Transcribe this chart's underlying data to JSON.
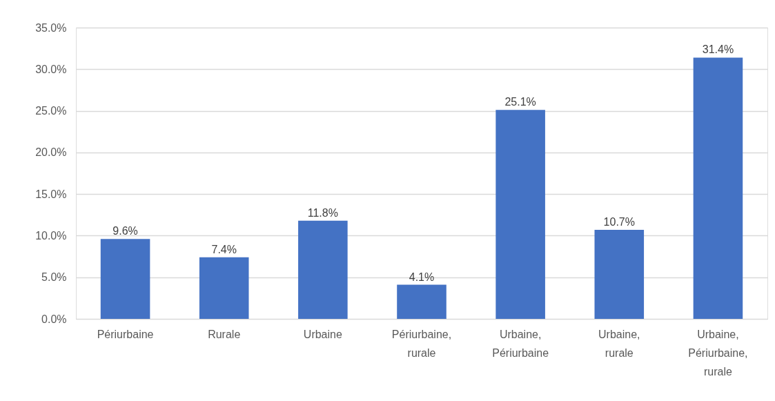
{
  "chart_data": {
    "type": "bar",
    "categories": [
      "Périurbaine",
      "Rurale",
      "Urbaine",
      "Périurbaine, rurale",
      "Urbaine, Périurbaine",
      "Urbaine, rurale",
      "Urbaine, Périurbaine, rurale"
    ],
    "values": [
      9.6,
      7.4,
      11.8,
      4.1,
      25.1,
      10.7,
      31.4
    ],
    "value_labels": [
      "9.6%",
      "7.4%",
      "11.8%",
      "4.1%",
      "25.1%",
      "10.7%",
      "31.4%"
    ],
    "color": "#4472c4",
    "ylim": [
      0,
      35
    ],
    "yticks": [
      {
        "value": 0,
        "label": "0.0%"
      },
      {
        "value": 5,
        "label": "5.0%"
      },
      {
        "value": 10,
        "label": "10.0%"
      },
      {
        "value": 15,
        "label": "15.0%"
      },
      {
        "value": 20,
        "label": "20.0%"
      },
      {
        "value": 25,
        "label": "25.0%"
      },
      {
        "value": 30,
        "label": "30.0%"
      },
      {
        "value": 35,
        "label": "35.0%"
      }
    ],
    "grid": "y"
  }
}
